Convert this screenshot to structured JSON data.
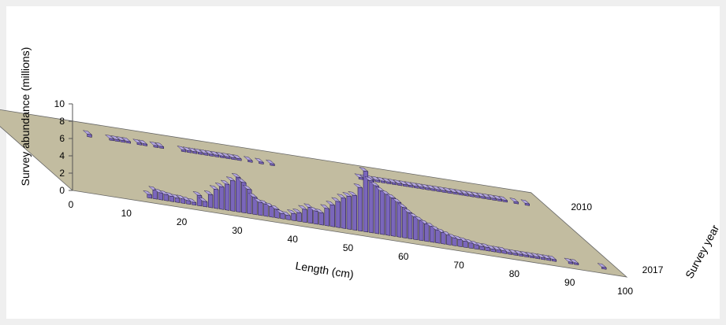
{
  "chart_data": {
    "type": "bar",
    "subtype": "3d-bar",
    "title": "",
    "xlabel": "Length (cm)",
    "ylabel": "Survey abundance (millions)",
    "depth_label": "Survey year",
    "colors": {
      "bar_front": "#7a66bb",
      "bar_top": "#b3a6e0",
      "bar_side": "#3d2f75",
      "floor": "#c2bca0",
      "background": "#efefef",
      "panel": "#ffffff"
    },
    "ylim": [
      0,
      10
    ],
    "y_ticks": [
      "0",
      "2",
      "4",
      "6",
      "8",
      "10"
    ],
    "x_ticks": [
      "0",
      "10",
      "20",
      "30",
      "40",
      "50",
      "60",
      "70",
      "80",
      "90",
      "100"
    ],
    "depth_ticks": [
      "2010",
      "2017"
    ],
    "series": [
      {
        "year": "2010",
        "points": [
          [
            17,
            0.3
          ],
          [
            21,
            0.2
          ],
          [
            22,
            0.2
          ],
          [
            23,
            0.2
          ],
          [
            24,
            0.2
          ],
          [
            26,
            0.2
          ],
          [
            27,
            0.2
          ],
          [
            29,
            0.2
          ],
          [
            30,
            0.2
          ],
          [
            34,
            0.2
          ],
          [
            35,
            0.2
          ],
          [
            36,
            0.2
          ],
          [
            37,
            0.2
          ],
          [
            38,
            0.2
          ],
          [
            39,
            0.2
          ],
          [
            40,
            0.2
          ],
          [
            41,
            0.2
          ],
          [
            42,
            0.2
          ],
          [
            43,
            0.2
          ],
          [
            44,
            0.2
          ],
          [
            46,
            0.2
          ],
          [
            48,
            0.2
          ],
          [
            50,
            0.2
          ],
          [
            66,
            0.2
          ],
          [
            67,
            0.2
          ],
          [
            68,
            0.2
          ],
          [
            69,
            0.2
          ],
          [
            70,
            0.2
          ],
          [
            71,
            0.2
          ],
          [
            72,
            0.2
          ],
          [
            73,
            0.2
          ],
          [
            74,
            0.2
          ],
          [
            75,
            0.2
          ],
          [
            76,
            0.2
          ],
          [
            77,
            0.2
          ],
          [
            78,
            0.2
          ],
          [
            79,
            0.2
          ],
          [
            80,
            0.2
          ],
          [
            81,
            0.2
          ],
          [
            82,
            0.2
          ],
          [
            83,
            0.2
          ],
          [
            84,
            0.2
          ],
          [
            85,
            0.2
          ],
          [
            86,
            0.2
          ],
          [
            87,
            0.2
          ],
          [
            88,
            0.2
          ],
          [
            89,
            0.2
          ],
          [
            90,
            0.2
          ],
          [
            91,
            0.2
          ],
          [
            92,
            0.2
          ],
          [
            94,
            0.2
          ],
          [
            96,
            0.2
          ]
        ]
      },
      {
        "year": "2017",
        "points": [
          [
            15,
            0.4
          ],
          [
            16,
            1.0
          ],
          [
            17,
            0.8
          ],
          [
            18,
            0.7
          ],
          [
            19,
            0.6
          ],
          [
            20,
            0.5
          ],
          [
            21,
            0.5
          ],
          [
            22,
            0.4
          ],
          [
            23,
            0.3
          ],
          [
            24,
            1.2
          ],
          [
            25,
            0.6
          ],
          [
            26,
            1.5
          ],
          [
            27,
            2.2
          ],
          [
            28,
            2.6
          ],
          [
            29,
            3.0
          ],
          [
            30,
            3.5
          ],
          [
            31,
            4.0
          ],
          [
            32,
            3.5
          ],
          [
            33,
            2.8
          ],
          [
            34,
            2.0
          ],
          [
            35,
            1.5
          ],
          [
            36,
            1.4
          ],
          [
            37,
            1.2
          ],
          [
            38,
            1.0
          ],
          [
            39,
            0.6
          ],
          [
            40,
            0.5
          ],
          [
            41,
            0.8
          ],
          [
            42,
            1.0
          ],
          [
            43,
            1.5
          ],
          [
            44,
            1.8
          ],
          [
            45,
            1.5
          ],
          [
            46,
            1.4
          ],
          [
            47,
            2.0
          ],
          [
            48,
            2.5
          ],
          [
            49,
            3.0
          ],
          [
            50,
            3.5
          ],
          [
            51,
            3.8
          ],
          [
            52,
            4.0
          ],
          [
            53,
            5.0
          ],
          [
            54,
            7.0
          ],
          [
            55,
            6.0
          ],
          [
            56,
            5.5
          ],
          [
            57,
            5.0
          ],
          [
            58,
            4.7
          ],
          [
            59,
            4.4
          ],
          [
            60,
            4.0
          ],
          [
            61,
            3.5
          ],
          [
            62,
            3.0
          ],
          [
            63,
            2.6
          ],
          [
            64,
            2.3
          ],
          [
            65,
            2.0
          ],
          [
            66,
            1.8
          ],
          [
            67,
            1.5
          ],
          [
            68,
            1.3
          ],
          [
            69,
            1.1
          ],
          [
            70,
            0.9
          ],
          [
            71,
            0.8
          ],
          [
            72,
            0.7
          ],
          [
            73,
            0.6
          ],
          [
            74,
            0.5
          ],
          [
            75,
            0.4
          ],
          [
            76,
            0.4
          ],
          [
            77,
            0.3
          ],
          [
            78,
            0.3
          ],
          [
            79,
            0.3
          ],
          [
            80,
            0.2
          ],
          [
            81,
            0.2
          ],
          [
            82,
            0.2
          ],
          [
            83,
            0.2
          ],
          [
            84,
            0.2
          ],
          [
            85,
            0.2
          ],
          [
            86,
            0.2
          ],
          [
            87,
            0.2
          ],
          [
            88,
            0.2
          ],
          [
            91,
            0.2
          ],
          [
            92,
            0.2
          ],
          [
            97,
            0.2
          ]
        ]
      }
    ]
  }
}
